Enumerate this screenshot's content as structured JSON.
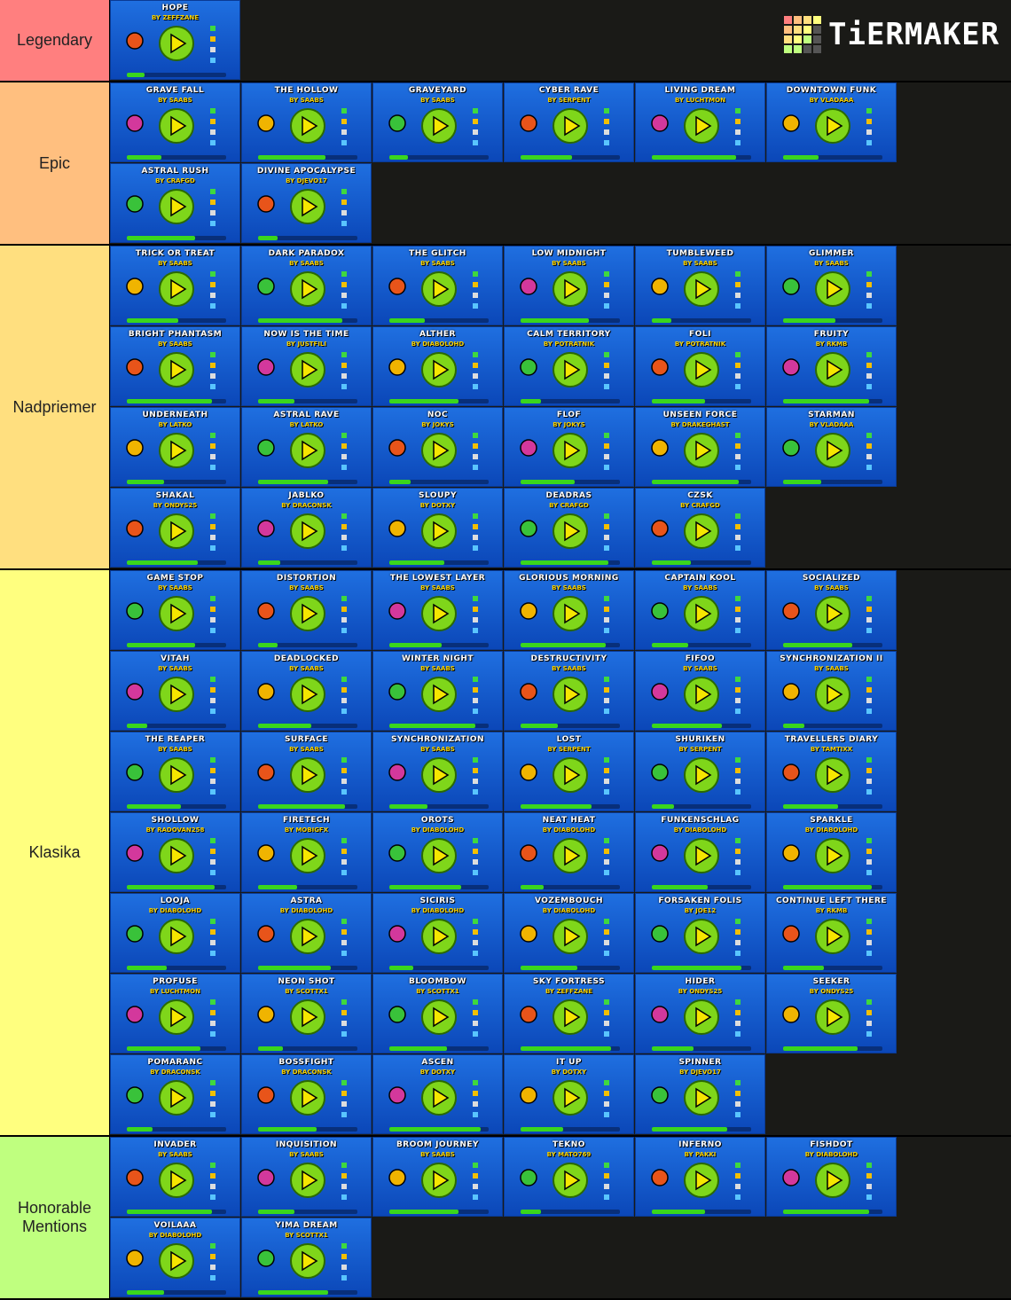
{
  "logo": "TiERMAKER",
  "tiers": [
    {
      "label": "Legendary",
      "color": "#ff7f7f",
      "items": [
        {
          "name": "Hope",
          "creator": "By ZeffZane"
        }
      ]
    },
    {
      "label": "Epic",
      "color": "#ffbf7f",
      "items": [
        {
          "name": "Grave Fall",
          "creator": "By Saabs"
        },
        {
          "name": "The Hollow",
          "creator": "By Saabs"
        },
        {
          "name": "Graveyard",
          "creator": "By Saabs"
        },
        {
          "name": "Cyber Rave",
          "creator": "By Serpent"
        },
        {
          "name": "Living Dream",
          "creator": "By Luchtmon"
        },
        {
          "name": "Downtown Funk",
          "creator": "By VladAAA"
        },
        {
          "name": "Astral Rush",
          "creator": "By CrafGD"
        },
        {
          "name": "Divine Apocalypse",
          "creator": "By Djevo17"
        }
      ]
    },
    {
      "label": "Nadpriemer",
      "color": "#ffdf7f",
      "items": [
        {
          "name": "Trick Or Treat",
          "creator": "By Saabs"
        },
        {
          "name": "Dark Paradox",
          "creator": "By Saabs"
        },
        {
          "name": "The Glitch",
          "creator": "By Saabs"
        },
        {
          "name": "Low Midnight",
          "creator": "By Saabs"
        },
        {
          "name": "Tumbleweed",
          "creator": "By Saabs"
        },
        {
          "name": "Glimmer",
          "creator": "By Saabs"
        },
        {
          "name": "Bright Phantasm",
          "creator": "By Saabs"
        },
        {
          "name": "Now Is The Time",
          "creator": "By JustFili"
        },
        {
          "name": "Alther",
          "creator": "By diaboloHD"
        },
        {
          "name": "Calm Territory",
          "creator": "By Potratnik"
        },
        {
          "name": "Foli",
          "creator": "By Potratnik"
        },
        {
          "name": "Fruity",
          "creator": "By RKMB"
        },
        {
          "name": "Underneath",
          "creator": "By Latko"
        },
        {
          "name": "Astral Rave",
          "creator": "By Latko"
        },
        {
          "name": "Noc",
          "creator": "By Jokys"
        },
        {
          "name": "Flof",
          "creator": "By Jokys"
        },
        {
          "name": "Unseen Force",
          "creator": "By drakeghast"
        },
        {
          "name": "Starman",
          "creator": "By VladAAA"
        },
        {
          "name": "Shakal",
          "creator": "By Ondys25"
        },
        {
          "name": "Jablko",
          "creator": "By DraconSK"
        },
        {
          "name": "Sloupy",
          "creator": "By dotxy"
        },
        {
          "name": "Deadras",
          "creator": "By CrafGD"
        },
        {
          "name": "Czsk",
          "creator": "By CrafGD"
        }
      ]
    },
    {
      "label": "Klasika",
      "color": "#ffff7f",
      "items": [
        {
          "name": "Game Stop",
          "creator": "By Saabs"
        },
        {
          "name": "Distortion",
          "creator": "By Saabs"
        },
        {
          "name": "The Lowest Layer",
          "creator": "By Saabs"
        },
        {
          "name": "Glorious Morning",
          "creator": "By Saabs"
        },
        {
          "name": "Captain Kool",
          "creator": "By Saabs"
        },
        {
          "name": "Socialized",
          "creator": "By Saabs"
        },
        {
          "name": "Vitah",
          "creator": "By Saabs"
        },
        {
          "name": "Deadlocked",
          "creator": "By Saabs"
        },
        {
          "name": "Winter Night",
          "creator": "By Saabs"
        },
        {
          "name": "Destructivity",
          "creator": "By Saabs"
        },
        {
          "name": "FiFoo",
          "creator": "By Saabs"
        },
        {
          "name": "Synchronization II",
          "creator": "By Saabs"
        },
        {
          "name": "The Reaper",
          "creator": "By Saabs"
        },
        {
          "name": "Surface",
          "creator": "By Saabs"
        },
        {
          "name": "Synchronization",
          "creator": "By Saabs"
        },
        {
          "name": "Lost",
          "creator": "By Serpent"
        },
        {
          "name": "Shuriken",
          "creator": "By Serpent"
        },
        {
          "name": "Travellers Diary",
          "creator": "By Tamtixx"
        },
        {
          "name": "Shollow",
          "creator": "By radovan258"
        },
        {
          "name": "Firetech",
          "creator": "By MobiGFX"
        },
        {
          "name": "Orots",
          "creator": "By diaboloHD"
        },
        {
          "name": "Neat Heat",
          "creator": "By diaboloHD"
        },
        {
          "name": "Funkenschlag",
          "creator": "By diaboloHD"
        },
        {
          "name": "Sparkle",
          "creator": "By diaboloHD"
        },
        {
          "name": "Looja",
          "creator": "By diaboloHD"
        },
        {
          "name": "Astra",
          "creator": "By diaboloHD"
        },
        {
          "name": "Siciris",
          "creator": "By diaboloHD"
        },
        {
          "name": "Vozembouch",
          "creator": "By diaboloHD"
        },
        {
          "name": "Forsaken Folis",
          "creator": "By Joe12"
        },
        {
          "name": "Continue Left There",
          "creator": "By RKMB"
        },
        {
          "name": "Profuse",
          "creator": "By Luchtmon"
        },
        {
          "name": "Neon Shot",
          "creator": "By scottx1"
        },
        {
          "name": "Bloombow",
          "creator": "By scottx1"
        },
        {
          "name": "Sky Fortress",
          "creator": "By ZeffZane"
        },
        {
          "name": "Hider",
          "creator": "By Ondys25"
        },
        {
          "name": "Seeker",
          "creator": "By Ondys25"
        },
        {
          "name": "Pomaranc",
          "creator": "By DraconSK"
        },
        {
          "name": "Bossfight",
          "creator": "By DraconSK"
        },
        {
          "name": "Ascen",
          "creator": "By dotxy"
        },
        {
          "name": "It Up",
          "creator": "By dotxy"
        },
        {
          "name": "Spinner",
          "creator": "By Djevo17"
        }
      ]
    },
    {
      "label": "Honorable Mentions",
      "color": "#bfff7f",
      "items": [
        {
          "name": "Invader",
          "creator": "By Saabs"
        },
        {
          "name": "Inquisition",
          "creator": "By Saabs"
        },
        {
          "name": "Broom Journey",
          "creator": "By Saabs"
        },
        {
          "name": "Tekno",
          "creator": "By Mato769"
        },
        {
          "name": "Inferno",
          "creator": "By Pakki"
        },
        {
          "name": "Fishdot",
          "creator": "By diaboloHD"
        },
        {
          "name": "Voilaaa",
          "creator": "By diaboloHD"
        },
        {
          "name": "Yima Dream",
          "creator": "By scottx1"
        }
      ]
    }
  ]
}
